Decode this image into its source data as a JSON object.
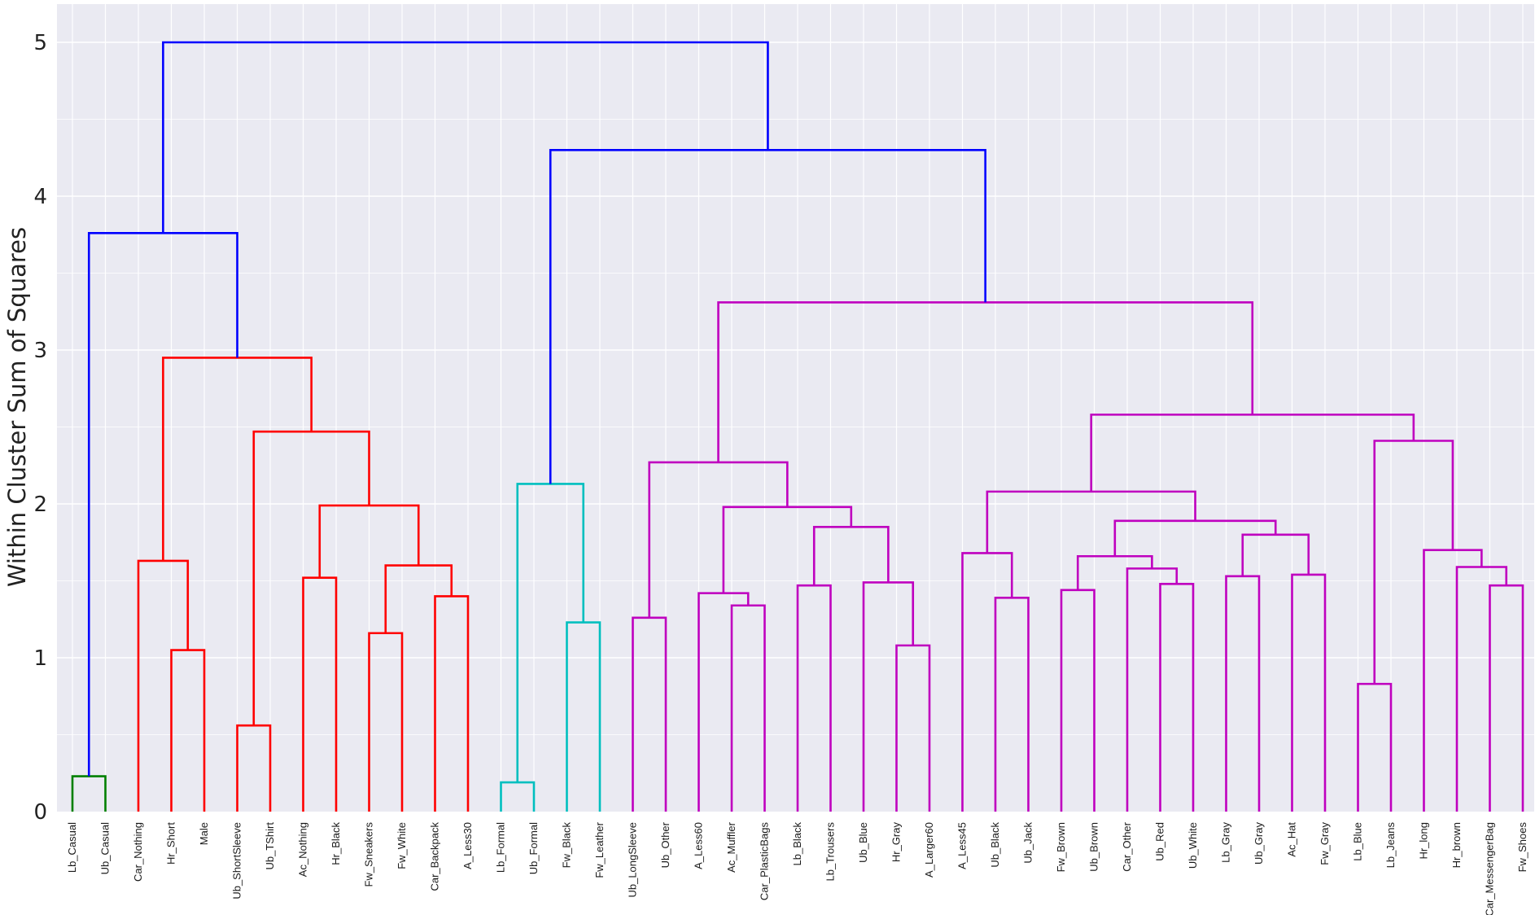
{
  "chart_data": {
    "type": "dendrogram",
    "title": "",
    "xlabel": "",
    "ylabel": "Within Cluster Sum of Squares",
    "ylim": [
      0,
      5.25
    ],
    "yticks": [
      0,
      1,
      2,
      3,
      4,
      5
    ],
    "grid": true,
    "leaves": [
      "Lb_Casual",
      "Ub_Casual",
      "Car_Nothing",
      "Hr_Short",
      "Male",
      "Ub_ShortSleeve",
      "Ub_TShirt",
      "Ac_Nothing",
      "Hr_Black",
      "Fw_Sneakers",
      "Fw_White",
      "Car_Backpack",
      "A_Less30",
      "Lb_Formal",
      "Ub_Formal",
      "Fw_Black",
      "Fw_Leather",
      "Ub_LongSleeve",
      "Ub_Other",
      "A_Less60",
      "Ac_Muffler",
      "Car_PlasticBags",
      "Lb_Black",
      "Lb_Trousers",
      "Ub_Blue",
      "Hr_Gray",
      "A_Larger60",
      "A_Less45",
      "Ub_Black",
      "Ub_Jack",
      "Fw_Brown",
      "Ub_Brown",
      "Car_Other",
      "Ub_Red",
      "Ub_White",
      "Lb_Gray",
      "Ub_Gray",
      "Ac_Hat",
      "Fw_Gray",
      "Lb_Blue",
      "Lb_Jeans",
      "Hr_long",
      "Hr_brown",
      "Car_MessengerBag",
      "Fw_Shoes"
    ],
    "colors": {
      "green": "#008000",
      "red": "#ff0000",
      "cyan": "#00bfbf",
      "magenta": "#bf00bf",
      "blue": "#0000ff"
    },
    "merges": [
      {
        "left": "L0",
        "right": "L1",
        "height": 0.23,
        "color": "green"
      },
      {
        "left": "L3",
        "right": "L4",
        "height": 1.05,
        "color": "red"
      },
      {
        "left": "L2",
        "right": "M1",
        "height": 1.63,
        "color": "red"
      },
      {
        "left": "L5",
        "right": "L6",
        "height": 0.56,
        "color": "red"
      },
      {
        "left": "L7",
        "right": "L8",
        "height": 1.52,
        "color": "red"
      },
      {
        "left": "L9",
        "right": "L10",
        "height": 1.16,
        "color": "red"
      },
      {
        "left": "L11",
        "right": "L12",
        "height": 1.4,
        "color": "red"
      },
      {
        "left": "M5",
        "right": "M6",
        "height": 1.6,
        "color": "red"
      },
      {
        "left": "M4",
        "right": "M7",
        "height": 1.99,
        "color": "red"
      },
      {
        "left": "M3",
        "right": "M8",
        "height": 2.47,
        "color": "red"
      },
      {
        "left": "M2",
        "right": "M9",
        "height": 2.95,
        "color": "red"
      },
      {
        "left": "M0",
        "right": "M10",
        "height": 3.76,
        "color": "blue"
      },
      {
        "left": "L13",
        "right": "L14",
        "height": 0.19,
        "color": "cyan"
      },
      {
        "left": "L15",
        "right": "L16",
        "height": 1.23,
        "color": "cyan"
      },
      {
        "left": "M12",
        "right": "M13",
        "height": 2.13,
        "color": "cyan"
      },
      {
        "left": "L17",
        "right": "L18",
        "height": 1.26,
        "color": "magenta"
      },
      {
        "left": "L20",
        "right": "L21",
        "height": 1.34,
        "color": "magenta"
      },
      {
        "left": "L19",
        "right": "M16",
        "height": 1.42,
        "color": "magenta"
      },
      {
        "left": "L22",
        "right": "L23",
        "height": 1.47,
        "color": "magenta"
      },
      {
        "left": "L25",
        "right": "L26",
        "height": 1.08,
        "color": "magenta"
      },
      {
        "left": "L24",
        "right": "M19",
        "height": 1.49,
        "color": "magenta"
      },
      {
        "left": "M18",
        "right": "M20",
        "height": 1.85,
        "color": "magenta"
      },
      {
        "left": "M17",
        "right": "M21",
        "height": 1.98,
        "color": "magenta"
      },
      {
        "left": "M15",
        "right": "M22",
        "height": 2.27,
        "color": "magenta"
      },
      {
        "left": "L28",
        "right": "L29",
        "height": 1.39,
        "color": "magenta"
      },
      {
        "left": "L27",
        "right": "M24",
        "height": 1.68,
        "color": "magenta"
      },
      {
        "left": "L30",
        "right": "L31",
        "height": 1.44,
        "color": "magenta"
      },
      {
        "left": "L33",
        "right": "L34",
        "height": 1.48,
        "color": "magenta"
      },
      {
        "left": "L32",
        "right": "M27",
        "height": 1.58,
        "color": "magenta"
      },
      {
        "left": "M26",
        "right": "M28",
        "height": 1.66,
        "color": "magenta"
      },
      {
        "left": "L35",
        "right": "L36",
        "height": 1.53,
        "color": "magenta"
      },
      {
        "left": "L37",
        "right": "L38",
        "height": 1.54,
        "color": "magenta"
      },
      {
        "left": "M30",
        "right": "M31",
        "height": 1.8,
        "color": "magenta"
      },
      {
        "left": "M29",
        "right": "M32",
        "height": 1.89,
        "color": "magenta"
      },
      {
        "left": "M25",
        "right": "M33",
        "height": 2.08,
        "color": "magenta"
      },
      {
        "left": "L39",
        "right": "L40",
        "height": 0.83,
        "color": "magenta"
      },
      {
        "left": "L43",
        "right": "L44",
        "height": 1.47,
        "color": "magenta"
      },
      {
        "left": "L42",
        "right": "M36",
        "height": 1.59,
        "color": "magenta"
      },
      {
        "left": "L41",
        "right": "M37",
        "height": 1.7,
        "color": "magenta"
      },
      {
        "left": "M35",
        "right": "M38",
        "height": 2.41,
        "color": "magenta"
      },
      {
        "left": "M34",
        "right": "M39",
        "height": 2.58,
        "color": "magenta"
      },
      {
        "left": "M23",
        "right": "M40",
        "height": 3.31,
        "color": "magenta"
      },
      {
        "left": "M14",
        "right": "M41",
        "height": 4.3,
        "color": "blue"
      },
      {
        "left": "M11",
        "right": "M42",
        "height": 5.0,
        "color": "blue"
      }
    ]
  }
}
